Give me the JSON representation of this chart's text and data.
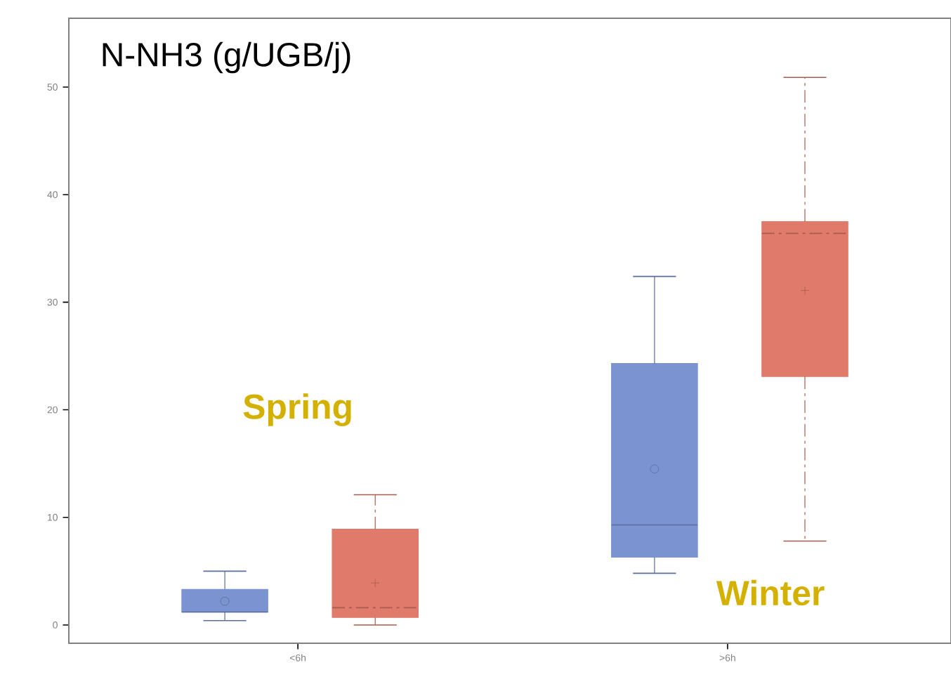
{
  "chart_data": {
    "type": "box",
    "title": "N-NH3 (g/UGB/j)",
    "categories": [
      "<6h",
      ">6h"
    ],
    "ylim": [
      -1.7,
      56.4
    ],
    "yticks": [
      0,
      10,
      20,
      30,
      40,
      50
    ],
    "annotations": [
      "Spring",
      "Winter"
    ],
    "series": [
      {
        "color": "#7b93d1",
        "marker": "circle",
        "line_style": "solid",
        "boxes": [
          {
            "low": 0.4,
            "q1": 1.2,
            "median": 1.2,
            "q3": 3.3,
            "high": 5.0,
            "mean": 2.2
          },
          {
            "low": 4.8,
            "q1": 6.3,
            "median": 9.3,
            "q3": 24.3,
            "high": 32.4,
            "mean": 14.5
          }
        ]
      },
      {
        "color": "#e07a6a",
        "marker": "cross",
        "line_style": "dashed",
        "boxes": [
          {
            "low": 0,
            "q1": 0.7,
            "median": 1.6,
            "q3": 8.9,
            "high": 12.1,
            "mean": 3.9
          },
          {
            "low": 7.8,
            "q1": 23.1,
            "median": 36.4,
            "q3": 37.5,
            "high": 50.9,
            "mean": 31.1
          }
        ]
      }
    ]
  }
}
